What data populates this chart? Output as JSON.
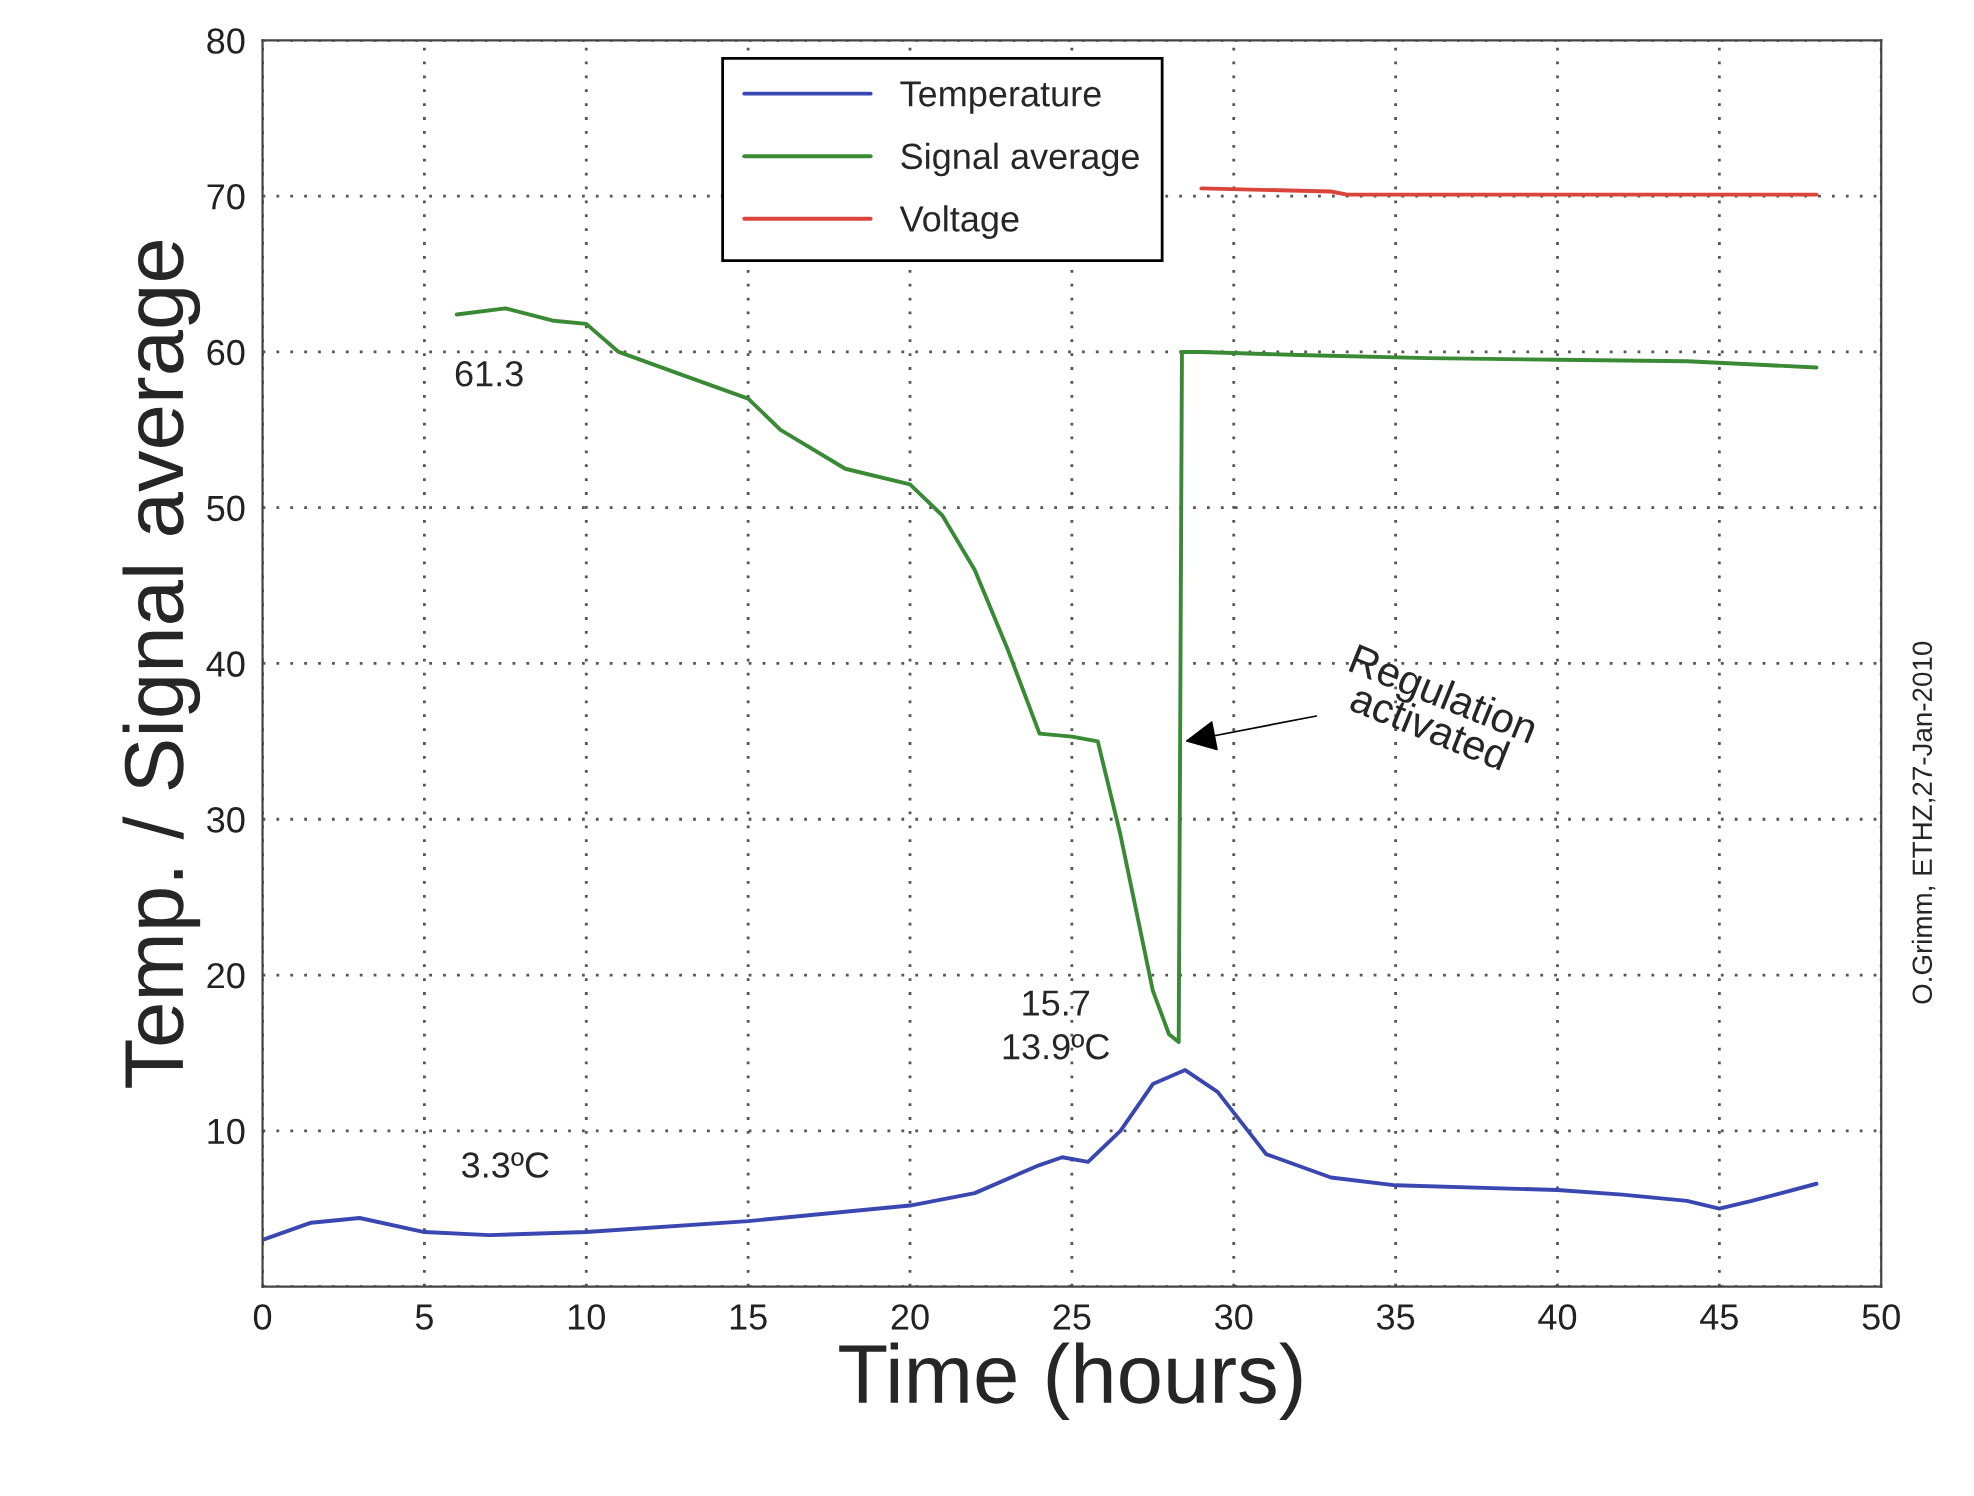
{
  "chart_data": {
    "type": "line",
    "xlabel": "Time (hours)",
    "ylabel": "Temp. / Signal average",
    "xlim": [
      0,
      50
    ],
    "ylim": [
      0,
      80
    ],
    "xticks": [
      0,
      5,
      10,
      15,
      20,
      25,
      30,
      35,
      40,
      45,
      50
    ],
    "yticks": [
      {
        "value": 0,
        "label": null
      },
      10,
      20,
      30,
      40,
      50,
      60,
      70,
      80
    ],
    "grid": true,
    "legend": "top",
    "marker": "none",
    "line_style": "solid",
    "series": [
      {
        "name": "Temperature",
        "color": "#3b47b0",
        "x": [
          0,
          1.5,
          3,
          5,
          7,
          10,
          15,
          20,
          22,
          24,
          24.7,
          25.5,
          26.5,
          27.5,
          28.5,
          29.5,
          31,
          33,
          35,
          40,
          42,
          44,
          45,
          46,
          48
        ],
        "values": [
          3,
          4.1,
          4.4,
          3.5,
          3.3,
          3.5,
          4.2,
          5.2,
          6,
          7.8,
          8.3,
          8,
          10,
          13,
          13.9,
          12.5,
          8.5,
          7,
          6.5,
          6.2,
          5.9,
          5.5,
          5,
          5.5,
          6.6
        ]
      },
      {
        "name": "Signal average",
        "color": "#3a8a35",
        "x": [
          6,
          7.5,
          9,
          10,
          11,
          13,
          15,
          16,
          18,
          20,
          21,
          22,
          23,
          24,
          25,
          25.8,
          26.5,
          27,
          27.5,
          28,
          28.3,
          28.4,
          29,
          32,
          36,
          40,
          44,
          48
        ],
        "values": [
          62.4,
          62.8,
          62,
          61.8,
          60,
          58.5,
          57,
          55,
          52.5,
          51.5,
          49.5,
          46,
          41,
          35.5,
          35.3,
          35,
          29,
          24,
          19,
          16.2,
          15.7,
          60,
          60,
          59.8,
          59.6,
          59.5,
          59.4,
          59
        ]
      },
      {
        "name": "Voltage",
        "color": "#d9453a",
        "x": [
          29,
          33,
          33.5,
          48
        ],
        "values": [
          70.5,
          70.3,
          70.1,
          70.1
        ]
      }
    ],
    "annotations": [
      "61.3",
      "3.3ºC",
      "15.7",
      "13.9ºC",
      {
        "text": "Regulation activated",
        "x": 28.5,
        "y": 35
      },
      "O.Grimm, ETHZ,27-Jan-2010"
    ]
  }
}
